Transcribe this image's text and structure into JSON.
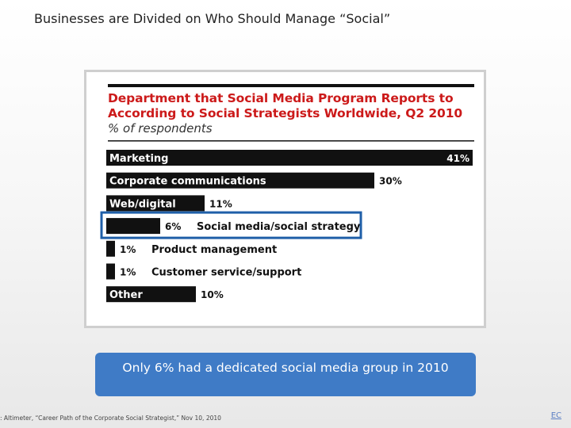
{
  "slide": {
    "title": "Businesses are Divided on Who Should Manage “Social”",
    "callout": "Only 6% had a dedicated social media group in 2010",
    "source": ": Altimeter, “Career Path of the Corporate Social Strategist,” Nov 10, 2010",
    "corner_link": "EC"
  },
  "colors": {
    "title_red": "#cc1a1a",
    "bar": "#111111",
    "highlight_box": "#1f5fa8",
    "callout_bg": "#3f7bc6"
  },
  "chart_data": {
    "type": "bar",
    "orientation": "horizontal",
    "title": "Department that Social Media Program Reports to According to Social Strategists Worldwide, Q2 2010",
    "subtitle": "% of respondents",
    "categories": [
      "Marketing",
      "Corporate communications",
      "Web/digital",
      "Social media/social strategy",
      "Product management",
      "Customer service/support",
      "Other"
    ],
    "values": [
      41,
      30,
      11,
      6,
      1,
      1,
      10
    ],
    "value_labels": [
      "41%",
      "30%",
      "11%",
      "6%",
      "1%",
      "1%",
      "10%"
    ],
    "highlighted_category": "Social media/social strategy",
    "grid": false,
    "legend": "none"
  }
}
